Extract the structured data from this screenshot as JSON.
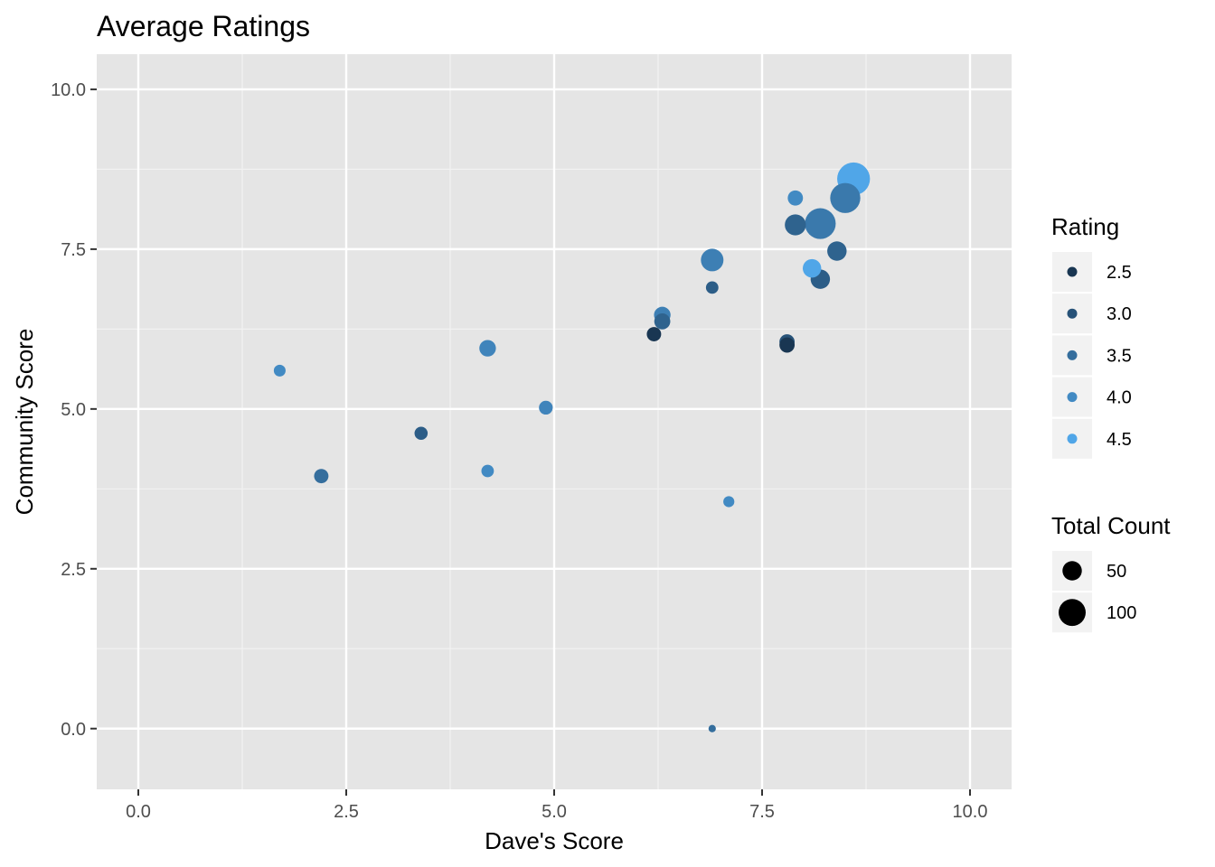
{
  "chart_data": {
    "type": "scatter",
    "title": "Average Ratings",
    "xlabel": "Dave's Score",
    "ylabel": "Community Score",
    "xlim": [
      -0.5,
      10.5
    ],
    "ylim": [
      -0.95,
      10.55
    ],
    "x_ticks": [
      0.0,
      2.5,
      5.0,
      7.5,
      10.0
    ],
    "x_tick_labels": [
      "0.0",
      "2.5",
      "5.0",
      "7.5",
      "10.0"
    ],
    "y_ticks": [
      0.0,
      2.5,
      5.0,
      7.5,
      10.0
    ],
    "y_tick_labels": [
      "0.0",
      "2.5",
      "5.0",
      "7.5",
      "10.0"
    ],
    "grid": true,
    "background": "#e5e5e5",
    "color_scale": {
      "legend_title": "Rating",
      "low_color": "#132b43",
      "high_color": "#56b1f7",
      "range": [
        2.3,
        4.7
      ],
      "breaks": [
        2.5,
        3.0,
        3.5,
        4.0,
        4.5
      ],
      "labels": [
        "2.5",
        "3.0",
        "3.5",
        "4.0",
        "4.5"
      ]
    },
    "size_scale": {
      "legend_title": "Total Count",
      "range": [
        1,
        130
      ],
      "breaks": [
        50,
        100
      ],
      "labels": [
        "50",
        "100"
      ]
    },
    "legend_position": "right",
    "points": [
      {
        "x": 1.7,
        "y": 5.6,
        "rating": 4.0,
        "count": 14
      },
      {
        "x": 2.2,
        "y": 3.95,
        "rating": 3.5,
        "count": 22
      },
      {
        "x": 3.4,
        "y": 4.62,
        "rating": 3.2,
        "count": 18
      },
      {
        "x": 4.2,
        "y": 5.95,
        "rating": 3.9,
        "count": 30
      },
      {
        "x": 4.2,
        "y": 4.03,
        "rating": 4.0,
        "count": 16
      },
      {
        "x": 4.9,
        "y": 5.02,
        "rating": 3.9,
        "count": 20
      },
      {
        "x": 6.2,
        "y": 6.17,
        "rating": 2.5,
        "count": 22
      },
      {
        "x": 6.3,
        "y": 6.37,
        "rating": 3.3,
        "count": 28
      },
      {
        "x": 6.3,
        "y": 6.47,
        "rating": 3.8,
        "count": 30
      },
      {
        "x": 6.9,
        "y": 7.33,
        "rating": 3.8,
        "count": 58
      },
      {
        "x": 6.9,
        "y": 6.9,
        "rating": 3.2,
        "count": 16
      },
      {
        "x": 6.9,
        "y": 0.0,
        "rating": 3.5,
        "count": 4
      },
      {
        "x": 7.1,
        "y": 3.55,
        "rating": 4.0,
        "count": 12
      },
      {
        "x": 7.8,
        "y": 6.05,
        "rating": 3.0,
        "count": 25
      },
      {
        "x": 7.8,
        "y": 6.0,
        "rating": 2.5,
        "count": 25
      },
      {
        "x": 7.9,
        "y": 8.3,
        "rating": 4.0,
        "count": 25
      },
      {
        "x": 7.9,
        "y": 7.88,
        "rating": 3.3,
        "count": 50
      },
      {
        "x": 8.1,
        "y": 7.2,
        "rating": 4.5,
        "count": 38
      },
      {
        "x": 8.2,
        "y": 7.9,
        "rating": 3.7,
        "count": 110
      },
      {
        "x": 8.2,
        "y": 7.03,
        "rating": 3.2,
        "count": 42
      },
      {
        "x": 8.4,
        "y": 7.47,
        "rating": 3.3,
        "count": 42
      },
      {
        "x": 8.5,
        "y": 8.3,
        "rating": 3.7,
        "count": 105
      },
      {
        "x": 8.6,
        "y": 8.6,
        "rating": 4.5,
        "count": 125
      }
    ]
  }
}
